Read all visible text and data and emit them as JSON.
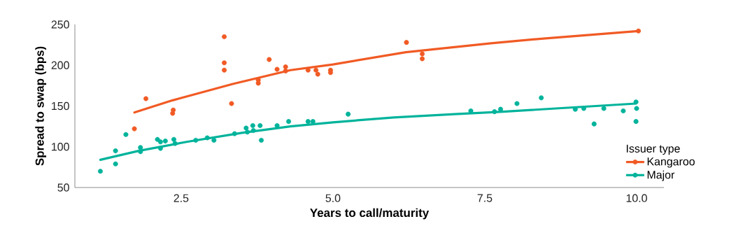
{
  "chart_data": {
    "type": "scatter",
    "xlabel": "Years to call/maturity",
    "ylabel": "Spread to swap (bps)",
    "legend_title": "Issuer type",
    "legend": "bottom right",
    "grid": false,
    "xlim": [
      0.75,
      10.45
    ],
    "ylim": [
      50,
      250
    ],
    "xticks": [
      2.5,
      {
        "value": 5,
        "label": "5.0"
      },
      7.5,
      {
        "value": 10,
        "label": "10.0"
      }
    ],
    "yticks": [
      50,
      100,
      150,
      200,
      250
    ],
    "series": [
      {
        "name": "Kangaroo",
        "marker": "circle",
        "color": "#f15a24",
        "x": [
          3.21,
          3.21,
          3.21,
          1.92,
          1.73,
          2.36,
          2.37,
          3.33,
          3.95,
          3.77,
          3.77,
          4.08,
          4.22,
          4.22,
          4.59,
          4.72,
          4.75,
          4.96,
          4.96,
          6.21,
          6.47,
          6.47,
          10.03
        ],
        "values": [
          235,
          203,
          194,
          159,
          122,
          141,
          145,
          153,
          207,
          182,
          178,
          195,
          198,
          193,
          194,
          194,
          189,
          194,
          191,
          228,
          214,
          208,
          242
        ]
      },
      {
        "type": "line",
        "marker": "none",
        "color": "#f15a24",
        "x": [
          1.73,
          2.36,
          3.35,
          4.3,
          5.0,
          6.2,
          7.6,
          8.5,
          10.03
        ],
        "values": [
          142,
          157,
          177,
          194,
          201,
          216,
          227,
          233,
          242
        ]
      },
      {
        "name": "Major",
        "marker": "circle",
        "color": "#00b39b",
        "x": [
          1.17,
          1.42,
          1.42,
          1.59,
          1.83,
          1.83,
          2.11,
          2.16,
          2.16,
          2.24,
          2.38,
          2.4,
          2.74,
          2.93,
          3.04,
          3.38,
          3.57,
          3.59,
          3.68,
          3.69,
          3.8,
          3.82,
          4.08,
          4.27,
          4.59,
          4.67,
          5.25,
          7.27,
          7.66,
          7.76,
          8.03,
          8.43,
          8.99,
          9.13,
          9.3,
          9.46,
          9.78,
          9.99,
          10.0,
          9.99
        ],
        "values": [
          70,
          79,
          95,
          115,
          99,
          94,
          109,
          106,
          98,
          107,
          109,
          104,
          108,
          111,
          108,
          116,
          123,
          118,
          126,
          120,
          126,
          108,
          126,
          131,
          131,
          131,
          140,
          144,
          143,
          146,
          153,
          160,
          146,
          147,
          128,
          147,
          144,
          155,
          147,
          131
        ]
      },
      {
        "type": "line",
        "marker": "none",
        "color": "#00b39b",
        "x": [
          1.17,
          1.8,
          2.59,
          3.5,
          4.3,
          5.0,
          6.0,
          7.0,
          7.8,
          9.99
        ],
        "values": [
          84,
          95,
          106,
          117,
          125,
          130,
          136,
          140,
          143,
          153
        ]
      }
    ]
  }
}
